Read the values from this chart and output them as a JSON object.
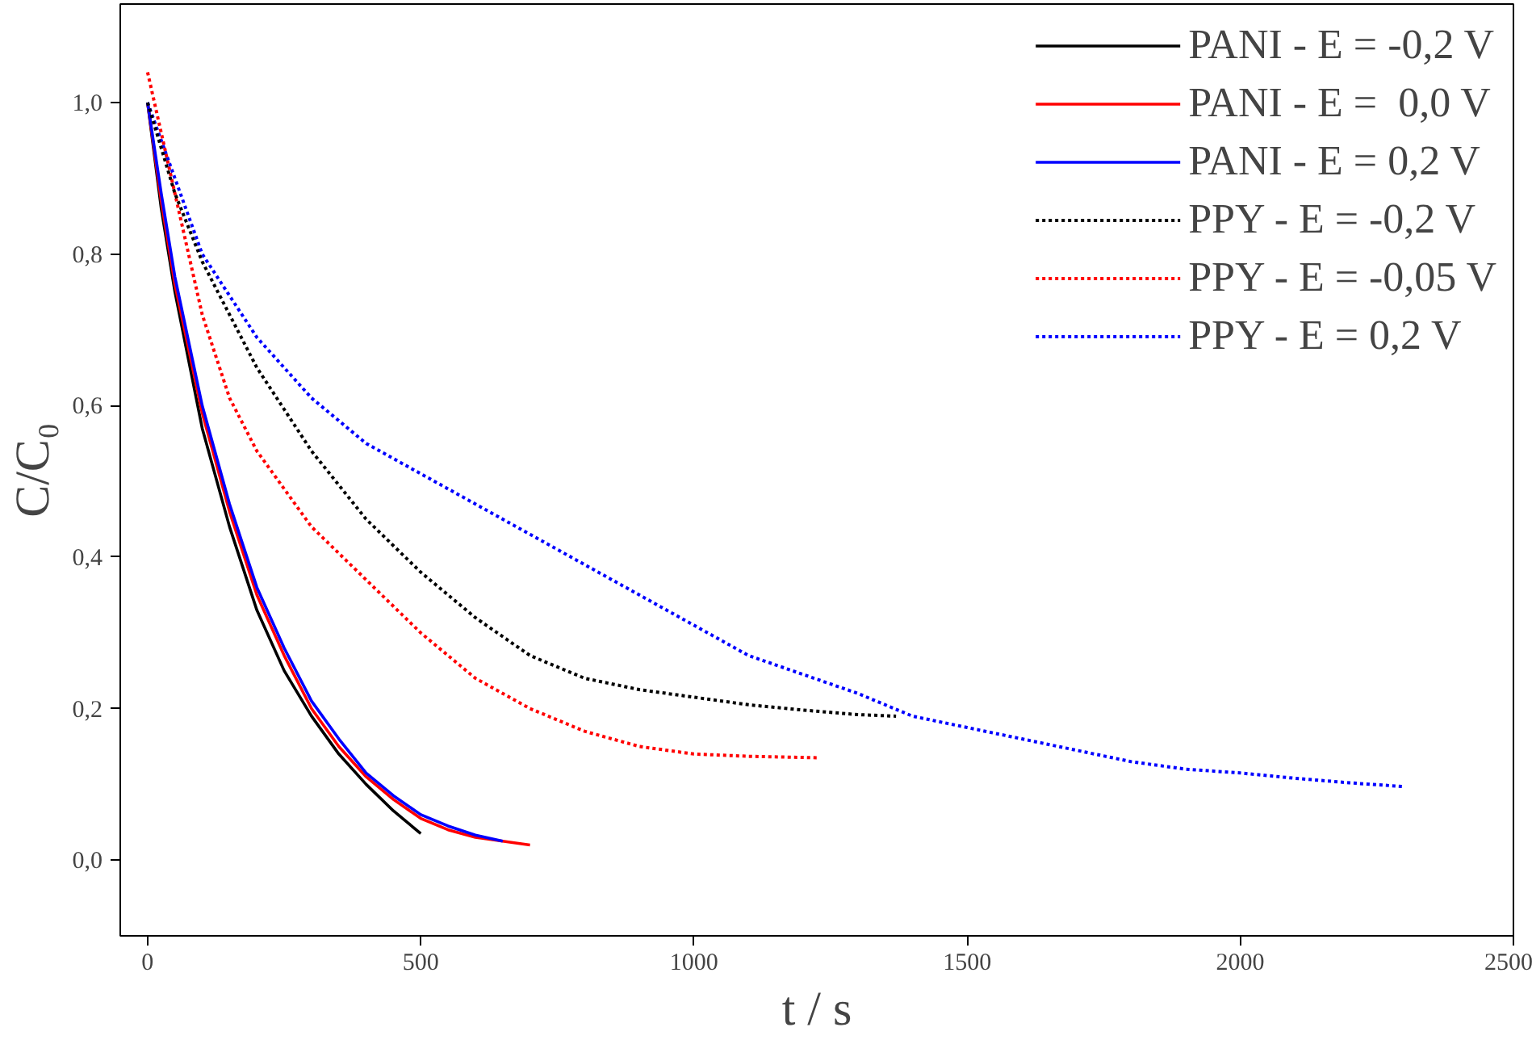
{
  "chart_data": {
    "type": "line",
    "xlabel": "t / s",
    "ylabel": "C/C₀",
    "xlim": [
      -50,
      2500
    ],
    "ylim": [
      -0.1,
      1.13
    ],
    "xticks": [
      0,
      500,
      1000,
      1500,
      2000,
      2500
    ],
    "yticks": [
      {
        "value": 0,
        "label": "0,0"
      },
      {
        "value": 0.2,
        "label": "0,2"
      },
      {
        "value": 0.4,
        "label": "0,4"
      },
      {
        "value": 0.6,
        "label": "0,6"
      },
      {
        "value": 0.8,
        "label": "0,8"
      },
      {
        "value": 1.0,
        "label": "1,0"
      }
    ],
    "grid": false,
    "legend": "top right",
    "marker": "none",
    "series": [
      {
        "name": "PANI - E = -0,2 V",
        "color": "#000000",
        "line_style": "solid",
        "x": [
          0,
          25,
          50,
          100,
          150,
          200,
          250,
          300,
          350,
          400,
          450,
          500
        ],
        "values": [
          1.0,
          0.86,
          0.75,
          0.57,
          0.44,
          0.33,
          0.25,
          0.19,
          0.14,
          0.1,
          0.065,
          0.035
        ]
      },
      {
        "name": "PANI - E =  0,0 V",
        "color": "#ff0000",
        "line_style": "solid",
        "x": [
          0,
          25,
          50,
          100,
          150,
          200,
          250,
          300,
          350,
          400,
          450,
          500,
          550,
          600,
          650,
          700
        ],
        "values": [
          1.0,
          0.87,
          0.76,
          0.59,
          0.46,
          0.35,
          0.27,
          0.2,
          0.15,
          0.11,
          0.08,
          0.055,
          0.04,
          0.03,
          0.025,
          0.02
        ]
      },
      {
        "name": "PANI - E = 0,2 V",
        "color": "#0000ff",
        "line_style": "solid",
        "x": [
          0,
          25,
          50,
          100,
          150,
          200,
          250,
          300,
          350,
          400,
          450,
          500,
          550,
          600,
          650
        ],
        "values": [
          1.0,
          0.88,
          0.77,
          0.6,
          0.47,
          0.36,
          0.28,
          0.21,
          0.16,
          0.115,
          0.085,
          0.06,
          0.045,
          0.033,
          0.025
        ]
      },
      {
        "name": "PPY - E = -0,2 V",
        "color": "#000000",
        "line_style": "dotted",
        "x": [
          0,
          50,
          100,
          200,
          300,
          400,
          500,
          600,
          700,
          800,
          900,
          1000,
          1100,
          1200,
          1300,
          1370
        ],
        "values": [
          1.0,
          0.88,
          0.79,
          0.65,
          0.54,
          0.45,
          0.38,
          0.32,
          0.27,
          0.24,
          0.225,
          0.215,
          0.205,
          0.198,
          0.192,
          0.19
        ]
      },
      {
        "name": "PPY - E = -0,05 V",
        "color": "#ff0000",
        "line_style": "dotted",
        "x": [
          0,
          50,
          100,
          150,
          200,
          300,
          400,
          500,
          600,
          700,
          800,
          900,
          1000,
          1100,
          1230
        ],
        "values": [
          1.04,
          0.88,
          0.72,
          0.61,
          0.54,
          0.44,
          0.37,
          0.3,
          0.24,
          0.2,
          0.17,
          0.15,
          0.14,
          0.137,
          0.135
        ]
      },
      {
        "name": "PPY - E = 0,2 V",
        "color": "#0000ff",
        "line_style": "dotted",
        "x": [
          0,
          100,
          200,
          300,
          400,
          500,
          600,
          700,
          800,
          900,
          1000,
          1100,
          1200,
          1300,
          1400,
          1500,
          1600,
          1700,
          1800,
          1900,
          2000,
          2100,
          2200,
          2300
        ],
        "values": [
          1.0,
          0.8,
          0.69,
          0.61,
          0.55,
          0.51,
          0.47,
          0.43,
          0.39,
          0.35,
          0.31,
          0.27,
          0.245,
          0.22,
          0.19,
          0.175,
          0.16,
          0.145,
          0.13,
          0.12,
          0.115,
          0.108,
          0.102,
          0.097
        ]
      }
    ]
  }
}
